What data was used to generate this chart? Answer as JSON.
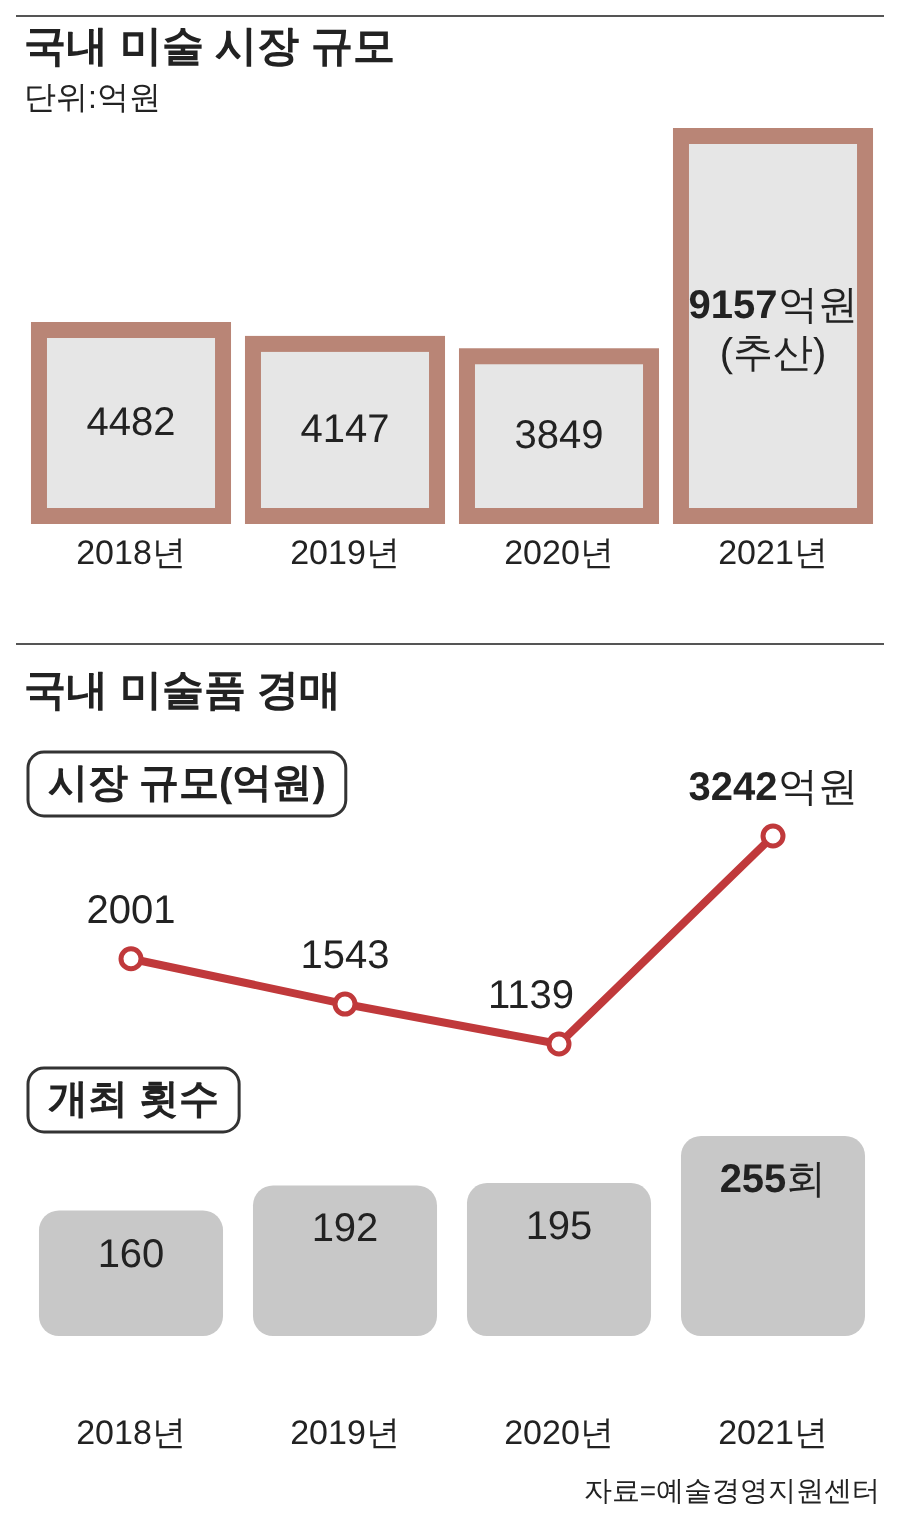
{
  "chart_data": [
    {
      "type": "bar",
      "title": "국내 미술 시장 규모",
      "subtitle": "단위:억원",
      "categories": [
        "2018년",
        "2019년",
        "2020년",
        "2021년"
      ],
      "values": [
        4482,
        4147,
        3849,
        9157
      ],
      "value_labels": [
        "4482",
        "4147",
        "3849",
        "9157억원\n(추산)"
      ],
      "colors": [
        "#b98576",
        "#b98576",
        "#b98576",
        "#b98576"
      ]
    },
    {
      "type": "line",
      "title": "국내 미술품 경매",
      "subtitle": "시장 규모(억원)",
      "categories": [
        null,
        null,
        null,
        null
      ],
      "marker": "circle",
      "series": [
        {
          "color": "#c0393b",
          "values": [
            2001,
            1543,
            1139,
            3242
          ],
          "value_labels": [
            "2001",
            "1543",
            "1139",
            "3242억원"
          ]
        }
      ]
    },
    {
      "type": "bar",
      "subtitle": "개최 횟수",
      "categories": [
        "2018년",
        "2019년",
        "2020년",
        "2021년"
      ],
      "values": [
        160,
        192,
        195,
        255
      ],
      "value_labels": [
        "160",
        "192",
        "195",
        "255회"
      ],
      "colors": [
        "#c8c8c8",
        "#c8c8c8",
        "#c8c8c8",
        "#c8c8c8"
      ],
      "annotations": [
        "자료=예술경영지원센터"
      ]
    }
  ]
}
